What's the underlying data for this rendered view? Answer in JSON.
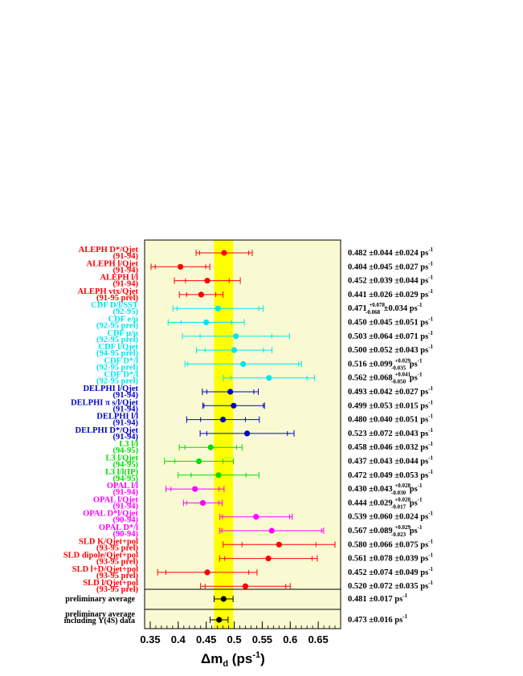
{
  "chart_data": {
    "type": "scatter",
    "xlabel": "Δm",
    "xlabel_sub": "d",
    "xlabel_unit_prefix": " (ps",
    "xlabel_unit_exp": "-1",
    "xlabel_unit_suffix": ")",
    "xlim": [
      0.34,
      0.69
    ],
    "xticks": [
      0.35,
      0.4,
      0.45,
      0.5,
      0.55,
      0.6,
      0.65
    ],
    "xtick_labels": [
      "0.35",
      "0.4",
      "0.45",
      "0.5",
      "0.55",
      "0.6",
      "0.65"
    ],
    "band": {
      "center": 0.481,
      "half_width": 0.017
    },
    "colors": {
      "ALEPH": "#ff0000",
      "CDF": "#00e5ee",
      "DELPHI": "#0000cc",
      "L3": "#00dd00",
      "OPAL": "#ff00ff",
      "SLD": "#ff0000",
      "band": "#ffff00",
      "panel": "#fafad2"
    },
    "measurements": [
      {
        "name": "ALEPH D*/Qjet",
        "period": "(91-94)",
        "group": "ALEPH",
        "value": 0.482,
        "stat": 0.044,
        "syst": 0.024,
        "text": "0.482 ±0.044 ±0.024 ps"
      },
      {
        "name": "ALEPH l/Qjet",
        "period": "(91-94)",
        "group": "ALEPH",
        "value": 0.404,
        "stat": 0.045,
        "syst": 0.027,
        "text": "0.404 ±0.045 ±0.027 ps"
      },
      {
        "name": "ALEPH l/l",
        "period": "(91-94)",
        "group": "ALEPH",
        "value": 0.452,
        "stat": 0.039,
        "syst": 0.044,
        "text": "0.452 ±0.039 ±0.044 ps"
      },
      {
        "name": "ALEPH vtx/Qjet",
        "period": "(91-95 prel)",
        "group": "ALEPH",
        "value": 0.441,
        "stat": 0.026,
        "syst": 0.029,
        "text": "0.441 ±0.026 ±0.029 ps"
      },
      {
        "name": "CDF D/l/SST",
        "period": "(92-95)",
        "group": "CDF",
        "value": 0.471,
        "stat": 0.073,
        "syst": 0.034,
        "text_a": "0.471",
        "text_up": "+0.078",
        "text_dn": "-0.068",
        "text_b": "±0.034 ps"
      },
      {
        "name": "CDF e/μ",
        "period": "(92-95 prel)",
        "group": "CDF",
        "value": 0.45,
        "stat": 0.045,
        "syst": 0.051,
        "text": "0.450 ±0.045 ±0.051 ps"
      },
      {
        "name": "CDF μ/μ",
        "period": "(92-95 prel)",
        "group": "CDF",
        "value": 0.503,
        "stat": 0.064,
        "syst": 0.071,
        "text": "0.503 ±0.064 ±0.071 ps"
      },
      {
        "name": "CDF l/Qjet",
        "period": "(94-95 prel)",
        "group": "CDF",
        "value": 0.5,
        "stat": 0.052,
        "syst": 0.043,
        "text": "0.500 ±0.052 ±0.043 ps"
      },
      {
        "name": "CDF D*/l",
        "period": "(92-95 prel)",
        "group": "CDF",
        "value": 0.516,
        "stat": 0.099,
        "syst": 0.032,
        "text_a": "0.516 ±0.099",
        "text_up": "+0.029",
        "text_dn": "-0.035",
        "text_b": "ps"
      },
      {
        "name": "CDF D*/l",
        "period": "(92-95 prel)",
        "group": "CDF",
        "value": 0.562,
        "stat": 0.068,
        "syst": 0.045,
        "text_a": "0.562 ±0.068",
        "text_up": "+0.041",
        "text_dn": "-0.050",
        "text_b": "ps"
      },
      {
        "name": "DELPHI l/Qjet",
        "period": "(91-94)",
        "group": "DELPHI",
        "value": 0.493,
        "stat": 0.042,
        "syst": 0.027,
        "text": "0.493 ±0.042 ±0.027 ps"
      },
      {
        "name": "DELPHI π s/l/Qjet",
        "period": "(91-94)",
        "group": "DELPHI",
        "value": 0.499,
        "stat": 0.053,
        "syst": 0.015,
        "text": "0.499 ±0.053 ±0.015 ps"
      },
      {
        "name": "DELPHI l/l",
        "period": "(91-94)",
        "group": "DELPHI",
        "value": 0.48,
        "stat": 0.04,
        "syst": 0.051,
        "text": "0.480 ±0.040 ±0.051 ps"
      },
      {
        "name": "DELPHI D*/Qjet",
        "period": "(91-94)",
        "group": "DELPHI",
        "value": 0.523,
        "stat": 0.072,
        "syst": 0.043,
        "text": "0.523 ±0.072 ±0.043 ps"
      },
      {
        "name": "L3 l/l",
        "period": "(94-95)",
        "group": "L3",
        "value": 0.458,
        "stat": 0.046,
        "syst": 0.032,
        "text": "0.458 ±0.046 ±0.032 ps"
      },
      {
        "name": "L3 l/Qjet",
        "period": "(94-95)",
        "group": "L3",
        "value": 0.437,
        "stat": 0.043,
        "syst": 0.044,
        "text": "0.437 ±0.043 ±0.044 ps"
      },
      {
        "name": "L3 l/l(IP)",
        "period": "(94-95)",
        "group": "L3",
        "value": 0.472,
        "stat": 0.049,
        "syst": 0.053,
        "text": "0.472 ±0.049 ±0.053 ps"
      },
      {
        "name": "OPAL l/l",
        "period": "(91-94)",
        "group": "OPAL",
        "value": 0.43,
        "stat": 0.043,
        "syst": 0.029,
        "text_a": "0.430 ±0.043",
        "text_up": "+0.028",
        "text_dn": "-0.030",
        "text_b": "ps"
      },
      {
        "name": "OPAL l/Qjet",
        "period": "(91-94)",
        "group": "OPAL",
        "value": 0.444,
        "stat": 0.029,
        "syst": 0.019,
        "text_a": "0.444 ±0.029",
        "text_up": "+0.020",
        "text_dn": "-0.017",
        "text_b": "ps"
      },
      {
        "name": "OPAL D*l/Qjet",
        "period": "(90-94)",
        "group": "OPAL",
        "value": 0.539,
        "stat": 0.06,
        "syst": 0.024,
        "text": "0.539 ±0.060 ±0.024 ps"
      },
      {
        "name": "OPAL D*/l",
        "period": "(90-94)",
        "group": "OPAL",
        "value": 0.567,
        "stat": 0.089,
        "syst": 0.026,
        "text_a": "0.567 ±0.089",
        "text_up": "+0.029",
        "text_dn": "-0.023",
        "text_b": "ps"
      },
      {
        "name": "SLD K/Qjet+pol",
        "period": "(93-95 prel)",
        "group": "SLD",
        "value": 0.58,
        "stat": 0.066,
        "syst": 0.075,
        "text": "0.580 ±0.066 ±0.075 ps"
      },
      {
        "name": "SLD dipole/Qjet+pol",
        "period": "(93-95 prel)",
        "group": "SLD",
        "value": 0.561,
        "stat": 0.078,
        "syst": 0.039,
        "text": "0.561 ±0.078 ±0.039 ps"
      },
      {
        "name": "SLD l+D/Qjet+pol",
        "period": "(93-95 prel)",
        "group": "SLD",
        "value": 0.452,
        "stat": 0.074,
        "syst": 0.049,
        "text": "0.452 ±0.074 ±0.049 ps"
      },
      {
        "name": "SLD l/Qjet+pol",
        "period": "(93-95 prel)",
        "group": "SLD",
        "value": 0.52,
        "stat": 0.072,
        "syst": 0.035,
        "text": "0.520 ±0.072 ±0.035 ps"
      }
    ],
    "averages": [
      {
        "label": "preliminary average",
        "value": 0.481,
        "error": 0.017,
        "text": "0.481 ±0.017 ps"
      },
      {
        "label": "preliminary average",
        "label2": "including Υ(4S) data",
        "value": 0.473,
        "error": 0.016,
        "text": "0.473 ±0.016 ps"
      }
    ],
    "unit_exp": "-1"
  }
}
